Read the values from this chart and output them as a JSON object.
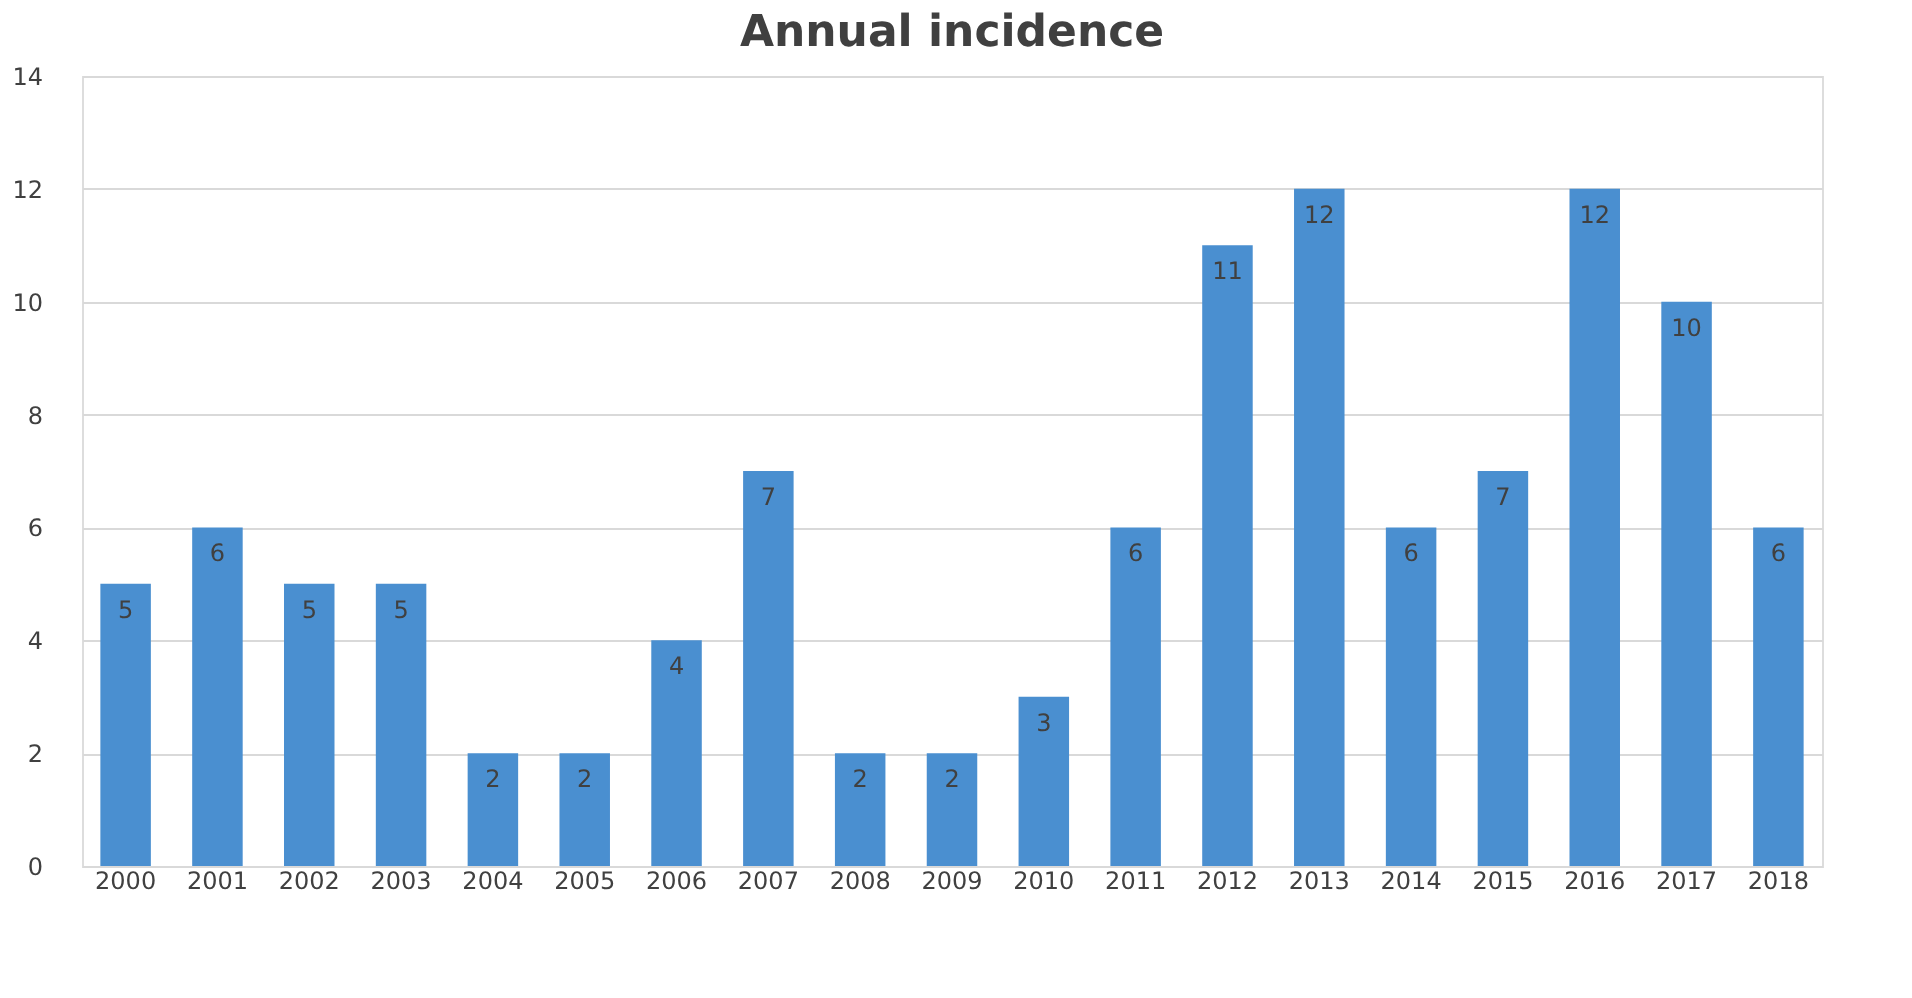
{
  "chart_data": {
    "type": "bar",
    "title": "Annual incidence",
    "categories": [
      "2000",
      "2001",
      "2002",
      "2003",
      "2004",
      "2005",
      "2006",
      "2007",
      "2008",
      "2009",
      "2010",
      "2011",
      "2012",
      "2013",
      "2014",
      "2015",
      "2016",
      "2017",
      "2018"
    ],
    "values": [
      5,
      6,
      5,
      5,
      2,
      2,
      4,
      7,
      2,
      2,
      3,
      6,
      11,
      12,
      6,
      7,
      12,
      10,
      6
    ],
    "color": "#4a8fd0",
    "ylim": [
      0,
      14
    ],
    "yticks": [
      0,
      2,
      4,
      6,
      8,
      10,
      12,
      14
    ],
    "grid": "y",
    "data_labels": true
  }
}
